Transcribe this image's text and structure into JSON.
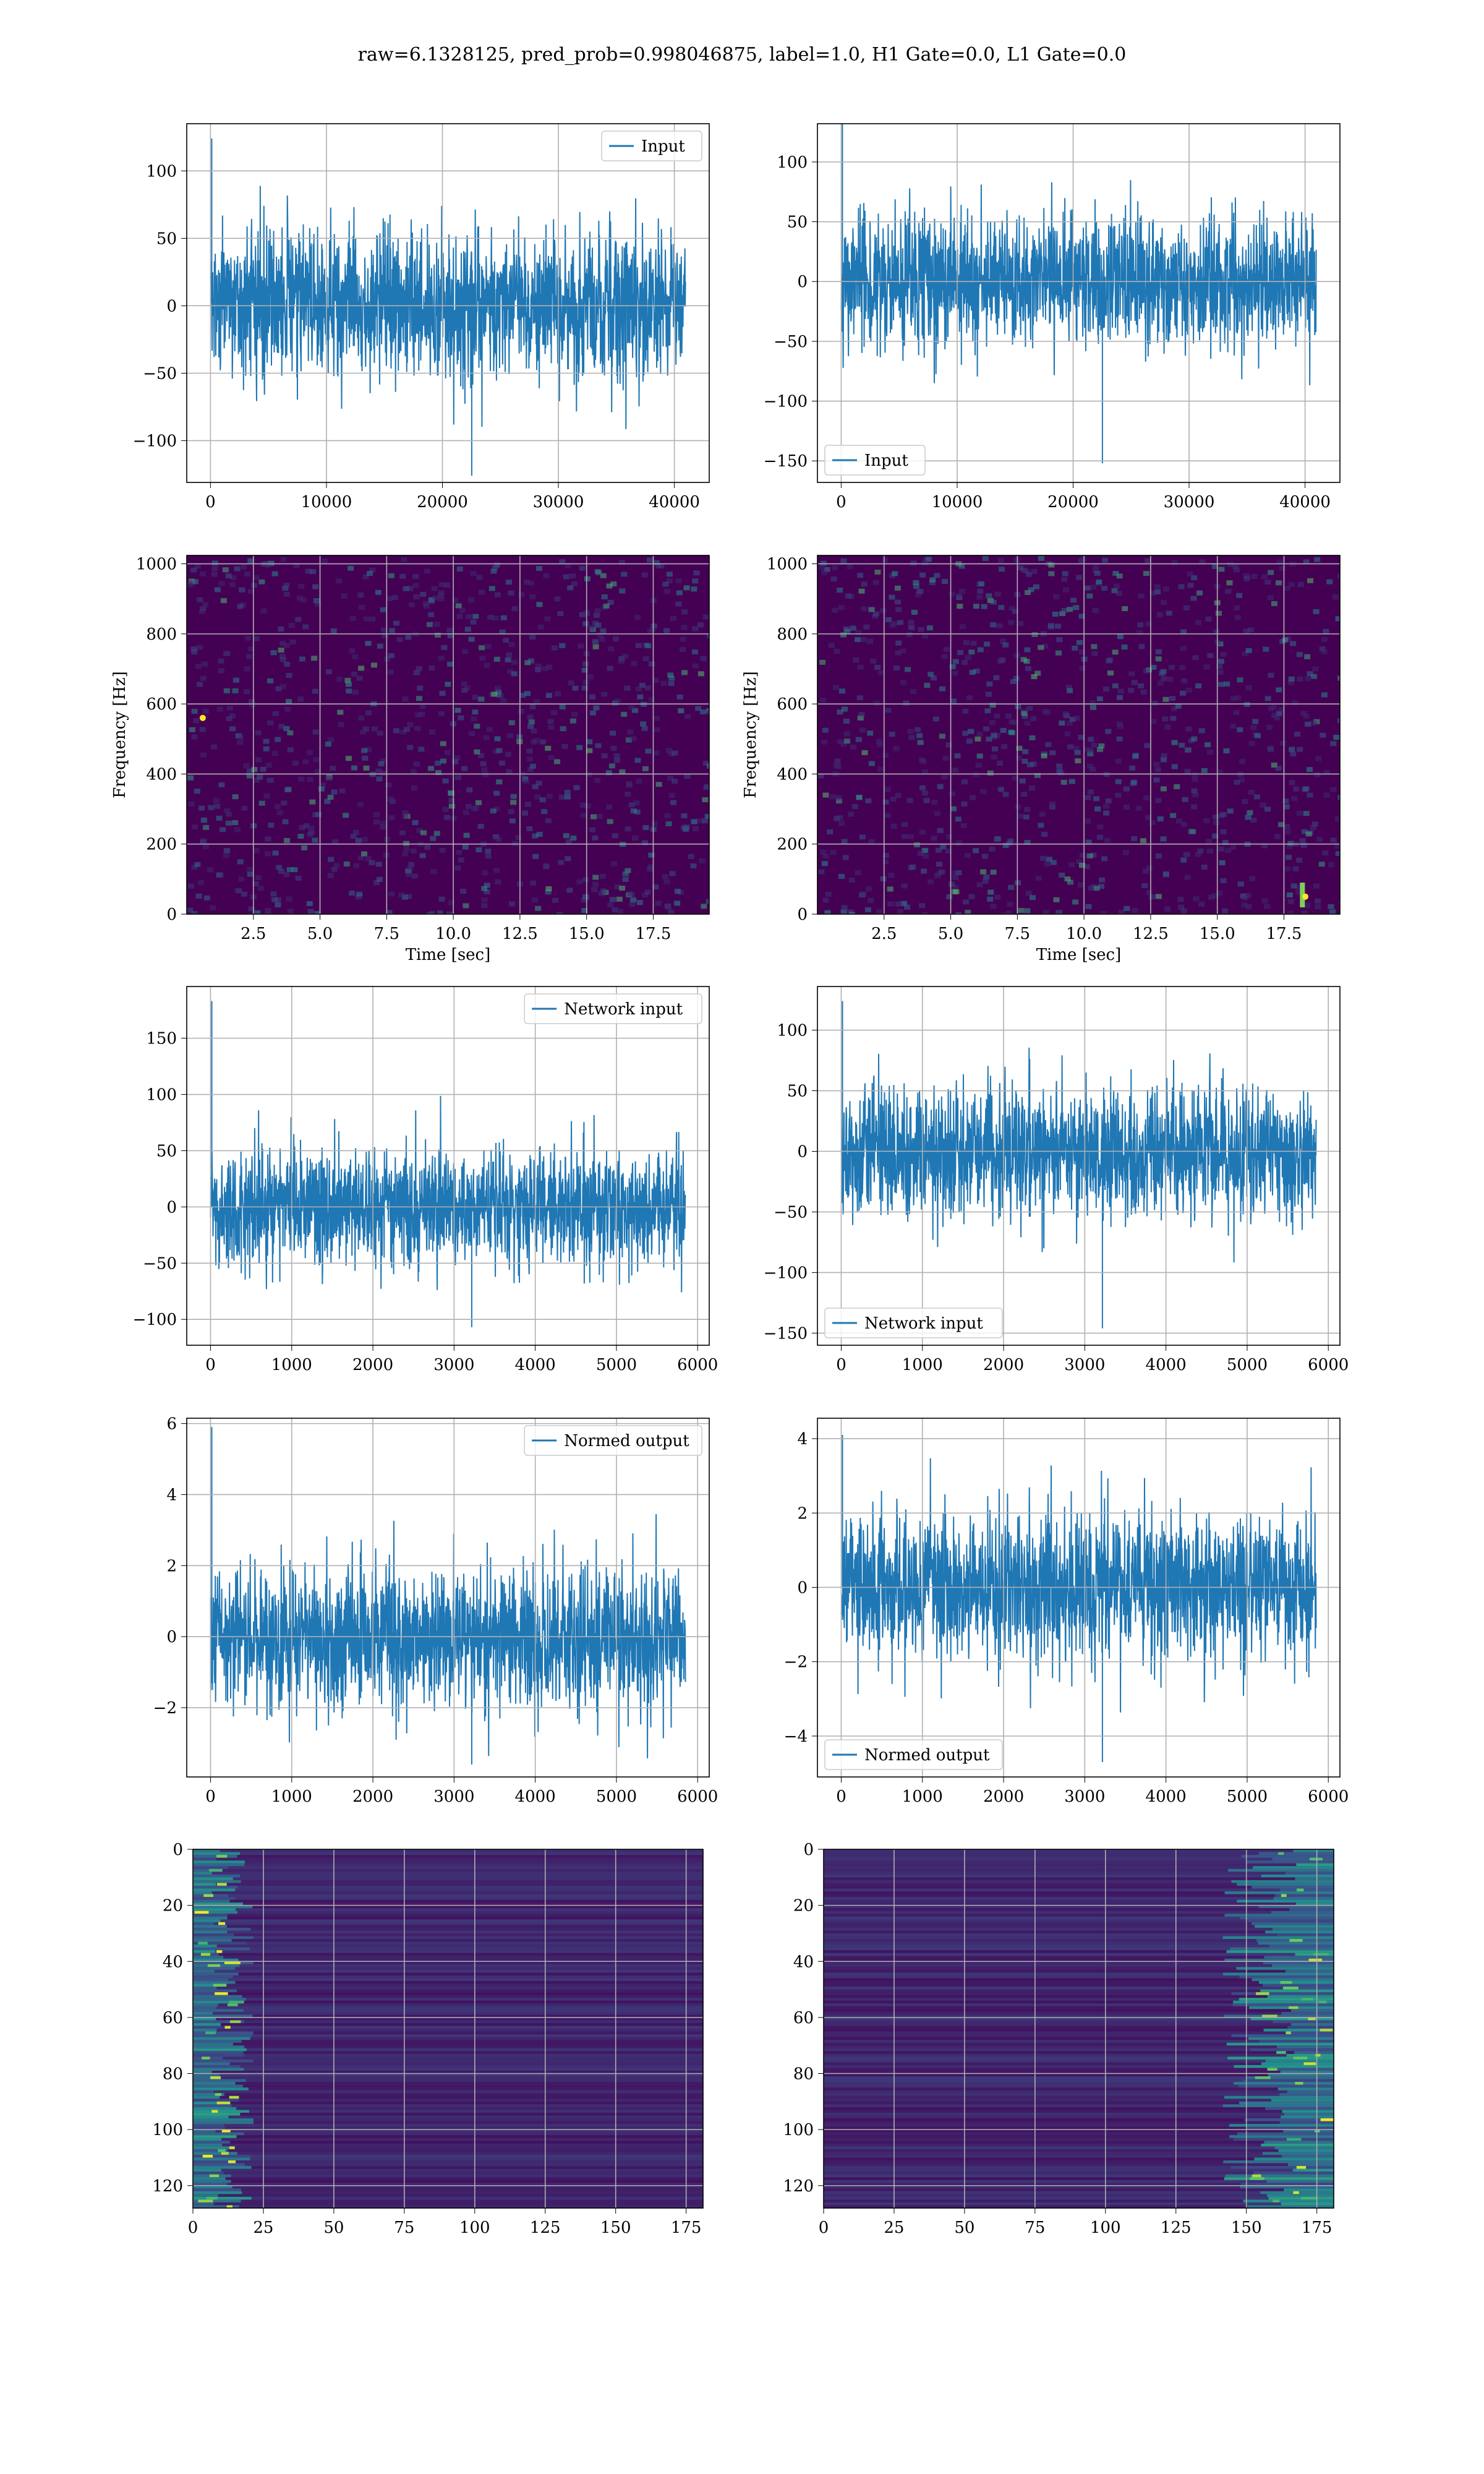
{
  "suptitle": "raw=6.1328125, pred_prob=0.998046875, label=1.0, H1 Gate=0.0, L1 Gate=0.0",
  "colors": {
    "line": "#1f77b4",
    "grid": "#b0b0b0",
    "axes": "#000000",
    "viridis_dark": "#440154",
    "viridis_mid": "#21918c",
    "viridis_bright": "#fde725"
  },
  "chart_data": [
    {
      "id": "r1c1",
      "type": "line",
      "series": [
        {
          "name": "Input",
          "kind": "noise",
          "n": 40960,
          "std": 28,
          "extreme_low": -126,
          "extreme_high": 124
        }
      ],
      "xlim": [
        -2048,
        43008
      ],
      "ylim": [
        -131,
        135
      ],
      "xticks": [
        0,
        10000,
        20000,
        30000,
        40000
      ],
      "xticklabels": [
        "0",
        "10000",
        "20000",
        "30000",
        "40000"
      ],
      "yticks": [
        -100,
        -50,
        0,
        50,
        100
      ],
      "yticklabels": [
        "−100",
        "−50",
        "0",
        "50",
        "100"
      ],
      "xlabel": "",
      "ylabel": "",
      "legend": "upper right",
      "grid": true
    },
    {
      "id": "r1c2",
      "type": "line",
      "series": [
        {
          "name": "Input",
          "kind": "noise",
          "n": 40960,
          "std": 28,
          "extreme_low": -152,
          "extreme_high": 132
        }
      ],
      "xlim": [
        -2048,
        43008
      ],
      "ylim": [
        -168,
        132
      ],
      "xticks": [
        0,
        10000,
        20000,
        30000,
        40000
      ],
      "xticklabels": [
        "0",
        "10000",
        "20000",
        "30000",
        "40000"
      ],
      "yticks": [
        -150,
        -100,
        -50,
        0,
        50,
        100
      ],
      "yticklabels": [
        "−150",
        "−100",
        "−50",
        "0",
        "50",
        "100"
      ],
      "xlabel": "",
      "ylabel": "",
      "legend": "lower left",
      "grid": true
    },
    {
      "id": "r2c1",
      "type": "heatmap",
      "xlim": [
        0,
        19.6
      ],
      "ylim": [
        0,
        1024
      ],
      "xticks": [
        2.5,
        5,
        7.5,
        10,
        12.5,
        15,
        17.5
      ],
      "xticklabels": [
        "2.5",
        "5.0",
        "7.5",
        "10.0",
        "12.5",
        "15.0",
        "17.5"
      ],
      "yticks": [
        0,
        200,
        400,
        600,
        800,
        1000
      ],
      "yticklabels": [
        "0",
        "200",
        "400",
        "600",
        "800",
        "1000"
      ],
      "xlabel": "Time [sec]",
      "ylabel": "Frequency [Hz]",
      "grid": true,
      "colormap": "viridis"
    },
    {
      "id": "r2c2",
      "type": "heatmap",
      "xlim": [
        0,
        19.6
      ],
      "ylim": [
        0,
        1024
      ],
      "xticks": [
        2.5,
        5,
        7.5,
        10,
        12.5,
        15,
        17.5
      ],
      "xticklabels": [
        "2.5",
        "5.0",
        "7.5",
        "10.0",
        "12.5",
        "15.0",
        "17.5"
      ],
      "yticks": [
        0,
        200,
        400,
        600,
        800,
        1000
      ],
      "yticklabels": [
        "0",
        "200",
        "400",
        "600",
        "800",
        "1000"
      ],
      "xlabel": "Time [sec]",
      "ylabel": "Frequency [Hz]",
      "grid": true,
      "colormap": "viridis"
    },
    {
      "id": "r3c1",
      "type": "line",
      "series": [
        {
          "name": "Network input",
          "kind": "noise",
          "n": 5850,
          "std": 27,
          "extreme_low": -107,
          "extreme_high": 183
        }
      ],
      "xlim": [
        -293,
        6143
      ],
      "ylim": [
        -123,
        196
      ],
      "xticks": [
        0,
        1000,
        2000,
        3000,
        4000,
        5000,
        6000
      ],
      "xticklabels": [
        "0",
        "1000",
        "2000",
        "3000",
        "4000",
        "5000",
        "6000"
      ],
      "yticks": [
        -100,
        -50,
        0,
        50,
        100,
        150
      ],
      "yticklabels": [
        "−100",
        "−50",
        "0",
        "50",
        "100",
        "150"
      ],
      "xlabel": "",
      "ylabel": "",
      "legend": "upper right",
      "grid": true
    },
    {
      "id": "r3c2",
      "type": "line",
      "series": [
        {
          "name": "Network input",
          "kind": "noise",
          "n": 5850,
          "std": 27,
          "extreme_low": -146,
          "extreme_high": 124
        }
      ],
      "xlim": [
        -293,
        6143
      ],
      "ylim": [
        -160,
        136
      ],
      "xticks": [
        0,
        1000,
        2000,
        3000,
        4000,
        5000,
        6000
      ],
      "xticklabels": [
        "0",
        "1000",
        "2000",
        "3000",
        "4000",
        "5000",
        "6000"
      ],
      "yticks": [
        -150,
        -100,
        -50,
        0,
        50,
        100
      ],
      "yticklabels": [
        "−150",
        "−100",
        "−50",
        "0",
        "50",
        "100"
      ],
      "xlabel": "",
      "ylabel": "",
      "legend": "lower left",
      "grid": true
    },
    {
      "id": "r4c1",
      "type": "line",
      "series": [
        {
          "name": "Normed output",
          "kind": "noise",
          "n": 5850,
          "std": 1.0,
          "extreme_low": -3.6,
          "extreme_high": 5.9
        }
      ],
      "xlim": [
        -293,
        6143
      ],
      "ylim": [
        -3.95,
        6.15
      ],
      "xticks": [
        0,
        1000,
        2000,
        3000,
        4000,
        5000,
        6000
      ],
      "xticklabels": [
        "0",
        "1000",
        "2000",
        "3000",
        "4000",
        "5000",
        "6000"
      ],
      "yticks": [
        -2,
        0,
        2,
        4,
        6
      ],
      "yticklabels": [
        "−2",
        "0",
        "2",
        "4",
        "6"
      ],
      "xlabel": "",
      "ylabel": "",
      "legend": "upper right",
      "grid": true
    },
    {
      "id": "r4c2",
      "type": "line",
      "series": [
        {
          "name": "Normed output",
          "kind": "noise",
          "n": 5850,
          "std": 1.0,
          "extreme_low": -4.7,
          "extreme_high": 4.1
        }
      ],
      "xlim": [
        -293,
        6143
      ],
      "ylim": [
        -5.1,
        4.55
      ],
      "xticks": [
        0,
        1000,
        2000,
        3000,
        4000,
        5000,
        6000
      ],
      "xticklabels": [
        "0",
        "1000",
        "2000",
        "3000",
        "4000",
        "5000",
        "6000"
      ],
      "yticks": [
        -4,
        -2,
        0,
        2,
        4
      ],
      "yticklabels": [
        "−4",
        "−2",
        "0",
        "2",
        "4"
      ],
      "xlabel": "",
      "ylabel": "",
      "legend": "lower left",
      "grid": true
    },
    {
      "id": "r5c1",
      "type": "heatmap",
      "xlim": [
        0,
        181
      ],
      "ylim": [
        128,
        0
      ],
      "xticks": [
        0,
        25,
        50,
        75,
        100,
        125,
        150,
        175
      ],
      "xticklabels": [
        "0",
        "25",
        "50",
        "75",
        "100",
        "125",
        "150",
        "175"
      ],
      "yticks": [
        0,
        20,
        40,
        60,
        80,
        100,
        120
      ],
      "yticklabels": [
        "0",
        "20",
        "40",
        "60",
        "80",
        "100",
        "120"
      ],
      "xlabel": "",
      "ylabel": "",
      "grid": true,
      "colormap": "viridis"
    },
    {
      "id": "r5c2",
      "type": "heatmap",
      "xlim": [
        0,
        181
      ],
      "ylim": [
        128,
        0
      ],
      "xticks": [
        0,
        25,
        50,
        75,
        100,
        125,
        150,
        175
      ],
      "xticklabels": [
        "0",
        "25",
        "50",
        "75",
        "100",
        "125",
        "150",
        "175"
      ],
      "yticks": [
        0,
        20,
        40,
        60,
        80,
        100,
        120
      ],
      "yticklabels": [
        "0",
        "20",
        "40",
        "60",
        "80",
        "100",
        "120"
      ],
      "xlabel": "",
      "ylabel": "",
      "grid": true,
      "colormap": "viridis"
    }
  ]
}
